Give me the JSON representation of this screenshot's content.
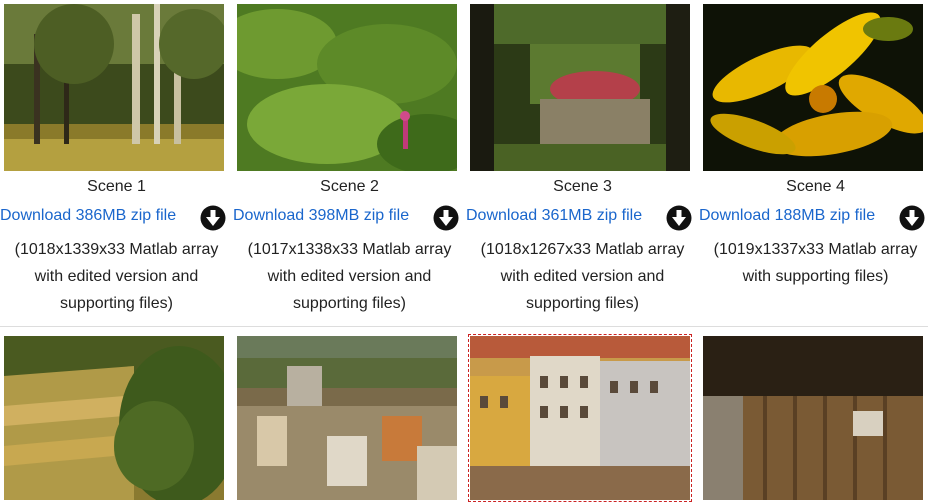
{
  "scenes": [
    {
      "title": "Scene 1",
      "download": "Download 386MB zip file",
      "desc1": "(1018x1339x33 Matlab array",
      "desc2": "with edited version and",
      "desc3": "supporting files)"
    },
    {
      "title": "Scene 2",
      "download": "Download 398MB zip file",
      "desc1": "(1017x1338x33 Matlab array",
      "desc2": "with edited version and",
      "desc3": "supporting files)"
    },
    {
      "title": "Scene 3",
      "download": "Download 361MB zip file",
      "desc1": "(1018x1267x33 Matlab array",
      "desc2": "with edited version and",
      "desc3": "supporting files)"
    },
    {
      "title": "Scene 4",
      "download": "Download 188MB zip file",
      "desc1": "(1019x1337x33 Matlab array",
      "desc2": "with supporting files)",
      "desc3": ""
    }
  ],
  "icons": {
    "download": "download-arrow-icon"
  },
  "colors": {
    "link": "#1a66cc",
    "text": "#222222",
    "divider": "#dddddd",
    "selection": "#cc2222"
  }
}
